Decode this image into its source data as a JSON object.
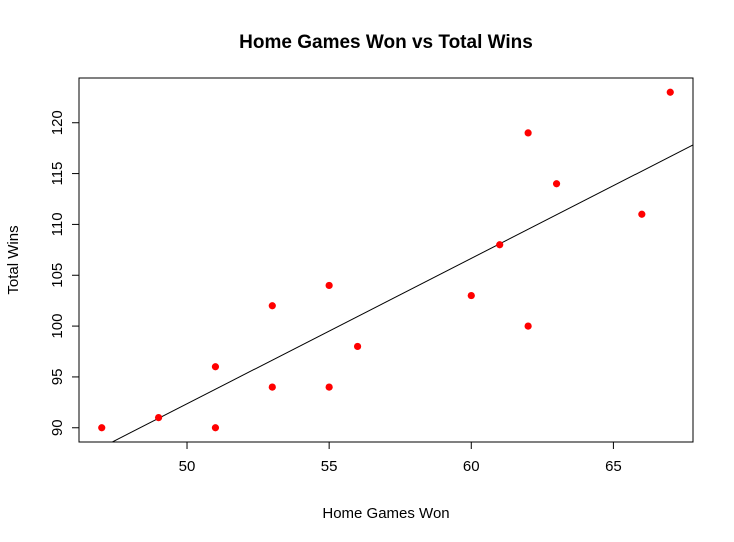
{
  "chart_data": {
    "type": "scatter",
    "title": "Home Games Won vs Total Wins",
    "xlabel": "Home Games Won",
    "ylabel": "Total Wins",
    "xlim": [
      46.2,
      67.8
    ],
    "ylim": [
      88.6,
      124.4
    ],
    "x_ticks": [
      50,
      55,
      60,
      65
    ],
    "y_ticks": [
      90,
      95,
      100,
      105,
      110,
      115,
      120
    ],
    "grid": false,
    "point_color": "#ff0000",
    "line_color": "#000000",
    "series": [
      {
        "points": [
          {
            "x": 47,
            "y": 90
          },
          {
            "x": 49,
            "y": 91
          },
          {
            "x": 51,
            "y": 96
          },
          {
            "x": 51,
            "y": 90
          },
          {
            "x": 53,
            "y": 102
          },
          {
            "x": 53,
            "y": 94
          },
          {
            "x": 55,
            "y": 104
          },
          {
            "x": 55,
            "y": 94
          },
          {
            "x": 56,
            "y": 98
          },
          {
            "x": 60,
            "y": 103
          },
          {
            "x": 61,
            "y": 108
          },
          {
            "x": 62,
            "y": 119
          },
          {
            "x": 62,
            "y": 100
          },
          {
            "x": 63,
            "y": 114
          },
          {
            "x": 66,
            "y": 111
          },
          {
            "x": 67,
            "y": 123
          }
        ]
      }
    ],
    "trend_line": {
      "slope": 1.43,
      "intercept": 20.86
    }
  }
}
